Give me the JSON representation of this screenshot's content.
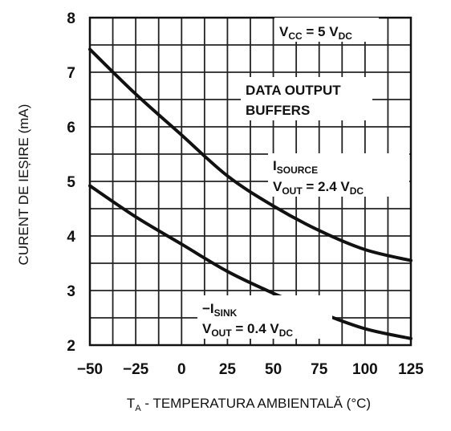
{
  "chart_data": {
    "type": "line",
    "title": "",
    "xlabel_prefix": "T",
    "xlabel_sub": "A",
    "xlabel_rest": " - TEMPERATURA AMBIENTALĂ (°C)",
    "ylabel": "CURENT DE IEȘIRE (mA)",
    "xlim": [
      -50,
      125
    ],
    "ylim": [
      2,
      8
    ],
    "x_ticks": [
      -50,
      -25,
      0,
      25,
      50,
      75,
      100,
      125
    ],
    "y_ticks": [
      2,
      3,
      4,
      5,
      6,
      7,
      8
    ],
    "x_tick_labels": [
      "−50",
      "−25",
      "0",
      "25",
      "50",
      "75",
      "100",
      "125"
    ],
    "y_tick_labels": [
      "2",
      "3",
      "4",
      "5",
      "6",
      "7",
      "8"
    ],
    "grid": true,
    "series": [
      {
        "name": "ISOURCE",
        "x": [
          -50,
          -25,
          0,
          25,
          50,
          75,
          100,
          125
        ],
        "y": [
          7.42,
          6.6,
          5.85,
          5.1,
          4.55,
          4.1,
          3.75,
          3.55
        ]
      },
      {
        "name": "-ISINK",
        "x": [
          -50,
          -25,
          0,
          25,
          50,
          75,
          100,
          125
        ],
        "y": [
          4.92,
          4.35,
          3.85,
          3.35,
          2.95,
          2.6,
          2.3,
          2.12
        ]
      }
    ],
    "annotations": {
      "vcc_main": "V",
      "vcc_sub": "CC",
      "vcc_mid": " = 5 V",
      "vcc_sub2": "DC",
      "buffers_line1": "DATA OUTPUT",
      "buffers_line2": "BUFFERS",
      "source_main": "I",
      "source_sub": "SOURCE",
      "source_vout": "V",
      "source_vout_sub": "OUT",
      "source_vout_mid": " = 2.4 V",
      "source_vout_sub2": "DC",
      "sink_main": "−I",
      "sink_sub": "SINK",
      "sink_vout": "V",
      "sink_vout_sub": "OUT",
      "sink_vout_mid": " = 0.4 V",
      "sink_vout_sub2": "DC"
    }
  }
}
